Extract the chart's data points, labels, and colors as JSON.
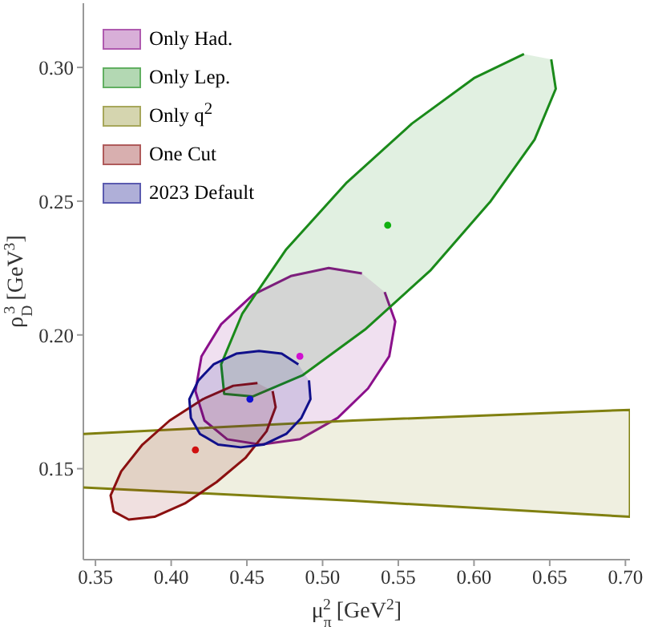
{
  "chart_data": {
    "type": "area",
    "xlabel": "μ$_{π}$$^{2}$ [GeV$^{2}$]",
    "ylabel": "ρ$_{D}$$^{3}$ [GeV$^{3}$]",
    "xlim": [
      0.342,
      0.703
    ],
    "xticks": [
      {
        "value": 0.35,
        "label": "0.35"
      },
      {
        "value": 0.4,
        "label": "0.40"
      },
      {
        "value": 0.45,
        "label": "0.45"
      },
      {
        "value": 0.5,
        "label": "0.50"
      },
      {
        "value": 0.55,
        "label": "0.55"
      },
      {
        "value": 0.6,
        "label": "0.60"
      },
      {
        "value": 0.65,
        "label": "0.65"
      },
      {
        "value": 0.7,
        "label": "0.70"
      }
    ],
    "ylim": [
      0.116,
      0.324
    ],
    "yticks": [
      {
        "value": 0.15,
        "label": "0.15"
      },
      {
        "value": 0.2,
        "label": "0.20"
      },
      {
        "value": 0.25,
        "label": "0.25"
      },
      {
        "value": 0.3,
        "label": "0.30"
      }
    ],
    "grid": false,
    "legend": "top left",
    "series": [
      {
        "name": "Only Had.",
        "color": "#8b108b",
        "x": [
          0.541,
          0.548,
          0.544,
          0.53,
          0.51,
          0.485,
          0.459,
          0.437,
          0.422,
          0.416,
          0.42,
          0.433,
          0.454,
          0.479,
          0.504,
          0.526
        ],
        "values": [
          0.216,
          0.205,
          0.192,
          0.18,
          0.169,
          0.161,
          0.159,
          0.161,
          0.168,
          0.179,
          0.192,
          0.204,
          0.215,
          0.222,
          0.225,
          0.223
        ]
      },
      {
        "name": "Only Lep.",
        "color": "#1a8a1a",
        "x": [
          0.651,
          0.654,
          0.64,
          0.611,
          0.571,
          0.528,
          0.487,
          0.454,
          0.435,
          0.433,
          0.447,
          0.476,
          0.516,
          0.559,
          0.6,
          0.633
        ],
        "values": [
          0.303,
          0.292,
          0.273,
          0.25,
          0.224,
          0.202,
          0.185,
          0.177,
          0.178,
          0.189,
          0.208,
          0.232,
          0.257,
          0.279,
          0.296,
          0.305
        ]
      },
      {
        "name": "Only q$^{2}$",
        "color": "#808010",
        "x": [
          0.342,
          0.52,
          0.703,
          0.703,
          0.52,
          0.342
        ],
        "values": [
          0.163,
          0.168,
          0.172,
          0.132,
          0.138,
          0.143
        ]
      },
      {
        "name": "One Cut",
        "color": "#8b1010",
        "x": [
          0.467,
          0.469,
          0.463,
          0.449,
          0.43,
          0.409,
          0.389,
          0.372,
          0.362,
          0.36,
          0.367,
          0.381,
          0.399,
          0.421,
          0.441,
          0.457
        ],
        "values": [
          0.179,
          0.173,
          0.164,
          0.154,
          0.145,
          0.137,
          0.132,
          0.131,
          0.134,
          0.14,
          0.149,
          0.159,
          0.168,
          0.176,
          0.181,
          0.182
        ]
      },
      {
        "name": "2023 Default",
        "color": "#10108b",
        "x": [
          0.491,
          0.492,
          0.486,
          0.476,
          0.461,
          0.446,
          0.431,
          0.419,
          0.413,
          0.412,
          0.418,
          0.428,
          0.443,
          0.458,
          0.473,
          0.484
        ],
        "values": [
          0.183,
          0.176,
          0.169,
          0.163,
          0.159,
          0.158,
          0.159,
          0.163,
          0.169,
          0.176,
          0.183,
          0.189,
          0.193,
          0.194,
          0.193,
          0.189
        ]
      },
      {
        "type": "scatter",
        "color": "#10b010",
        "x": [
          0.543
        ],
        "values": [
          0.241
        ]
      },
      {
        "type": "scatter",
        "color": "#d010d0",
        "x": [
          0.485
        ],
        "values": [
          0.192
        ]
      },
      {
        "type": "scatter",
        "color": "#d01010",
        "x": [
          0.416
        ],
        "values": [
          0.157
        ]
      },
      {
        "type": "scatter",
        "color": "#1010d0",
        "x": [
          0.452
        ],
        "values": [
          0.176
        ]
      }
    ]
  }
}
